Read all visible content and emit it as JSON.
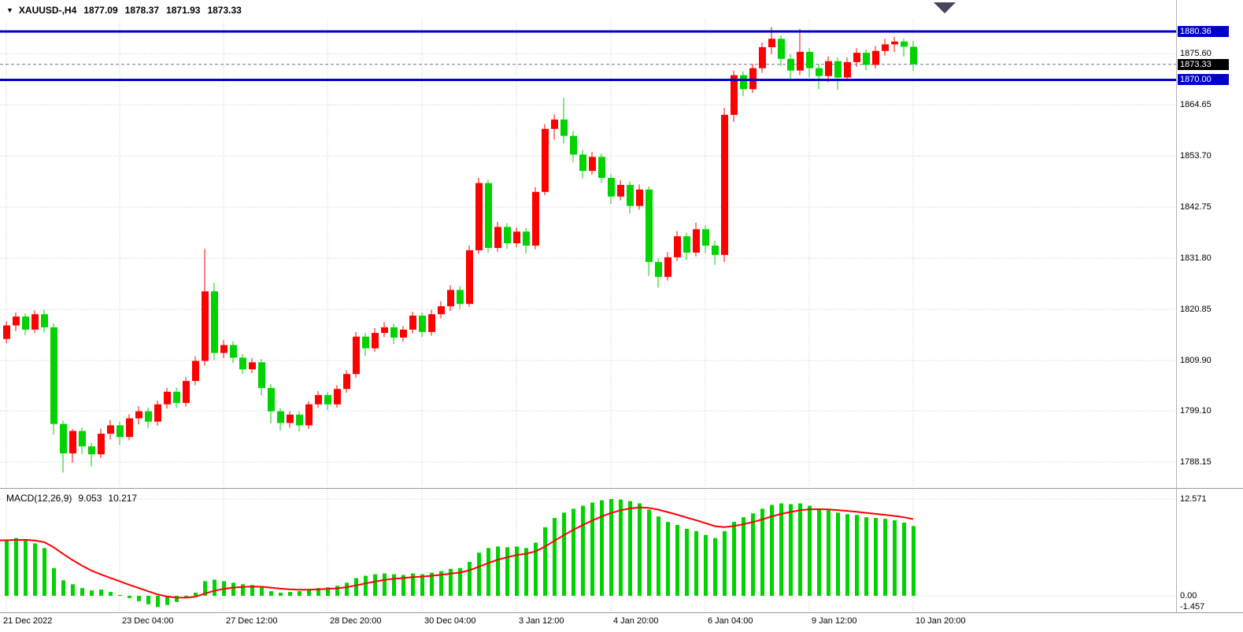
{
  "header": {
    "collapse_icon": "▼",
    "symbol_period": "XAUUSD-,H4",
    "open": "1877.09",
    "high": "1878.37",
    "low": "1871.93",
    "close": "1873.33"
  },
  "macd_panel": {
    "title": "MACD(12,26,9)",
    "main_value": "9.053",
    "signal_value": "10.217"
  },
  "colors": {
    "bull": "#ff0000",
    "bear": "#00d300",
    "macd_histogram": "#00d300",
    "macd_signal": "#ff0000",
    "level_line": "#0000cc",
    "grid": "#c9c9c9",
    "bid_line": "#777777",
    "current_tag_bg": "#000000",
    "divider": "#9a9a9a",
    "marker": "#45455a",
    "axis_text": "#000000"
  },
  "chart_data": {
    "type": "candlestick",
    "symbol": "XAUUSD-",
    "timeframe": "H4",
    "title": "XAUUSD-,H4 1877.09 1878.37 1871.93 1873.33",
    "price_view": [
      1783.5,
      1882.6
    ],
    "grid": true,
    "price_ticks": [
      {
        "label": "1875.60",
        "price": 1875.6
      },
      {
        "label": "1864.65",
        "price": 1864.65
      },
      {
        "label": "1853.70",
        "price": 1853.7
      },
      {
        "label": "1842.75",
        "price": 1842.75
      },
      {
        "label": "1831.80",
        "price": 1831.8
      },
      {
        "label": "1820.85",
        "price": 1820.85
      },
      {
        "label": "1809.90",
        "price": 1809.9
      },
      {
        "label": "1799.10",
        "price": 1799.1
      },
      {
        "label": "1788.15",
        "price": 1788.15
      }
    ],
    "levels": [
      {
        "label": "1880.36",
        "price": 1880.36
      },
      {
        "label": "1870.00",
        "price": 1870.0
      }
    ],
    "current": {
      "label": "1873.33",
      "price": 1873.33
    },
    "time_labels": [
      {
        "label": "21 Dec 2022",
        "index": 0
      },
      {
        "label": "23 Dec 04:00",
        "index": 12
      },
      {
        "label": "27 Dec 12:00",
        "index": 23
      },
      {
        "label": "28 Dec 20:00",
        "index": 34
      },
      {
        "label": "30 Dec 04:00",
        "index": 44
      },
      {
        "label": "3 Jan 12:00",
        "index": 54
      },
      {
        "label": "4 Jan 20:00",
        "index": 64
      },
      {
        "label": "6 Jan 04:00",
        "index": 74
      },
      {
        "label": "9 Jan 12:00",
        "index": 85
      },
      {
        "label": "10 Jan 20:00",
        "index": 96
      }
    ],
    "ohlc": [
      [
        1814.5,
        1818.3,
        1813.6,
        1817.4
      ],
      [
        1817.4,
        1820.2,
        1816.2,
        1819.3
      ],
      [
        1819.3,
        1820.0,
        1815.3,
        1816.5
      ],
      [
        1816.5,
        1820.6,
        1815.8,
        1819.8
      ],
      [
        1819.8,
        1820.8,
        1815.9,
        1817.0
      ],
      [
        1817.0,
        1817.8,
        1794.0,
        1796.3
      ],
      [
        1796.3,
        1797.0,
        1785.9,
        1790.0
      ],
      [
        1790.0,
        1795.2,
        1788.0,
        1794.8
      ],
      [
        1794.8,
        1795.5,
        1789.9,
        1791.5
      ],
      [
        1791.5,
        1792.3,
        1787.2,
        1789.8
      ],
      [
        1789.8,
        1795.3,
        1789.0,
        1794.2
      ],
      [
        1794.2,
        1797.1,
        1793.0,
        1796.0
      ],
      [
        1796.0,
        1796.8,
        1791.8,
        1793.5
      ],
      [
        1793.5,
        1798.4,
        1792.8,
        1797.5
      ],
      [
        1797.5,
        1800.1,
        1796.2,
        1799.0
      ],
      [
        1799.0,
        1799.8,
        1795.4,
        1796.8
      ],
      [
        1796.8,
        1801.3,
        1795.9,
        1800.5
      ],
      [
        1800.5,
        1804.0,
        1799.6,
        1803.2
      ],
      [
        1803.2,
        1804.1,
        1799.7,
        1800.8
      ],
      [
        1800.8,
        1806.3,
        1800.0,
        1805.5
      ],
      [
        1805.5,
        1810.8,
        1804.6,
        1809.8
      ],
      [
        1809.8,
        1833.8,
        1808.8,
        1824.7
      ],
      [
        1824.7,
        1826.5,
        1810.0,
        1811.5
      ],
      [
        1811.5,
        1814.3,
        1810.4,
        1813.2
      ],
      [
        1813.2,
        1814.0,
        1809.4,
        1810.5
      ],
      [
        1810.5,
        1811.3,
        1807.0,
        1808.0
      ],
      [
        1808.0,
        1810.4,
        1807.2,
        1809.5
      ],
      [
        1809.5,
        1810.2,
        1802.4,
        1804.0
      ],
      [
        1804.0,
        1804.8,
        1796.4,
        1799.0
      ],
      [
        1799.0,
        1799.7,
        1794.9,
        1796.5
      ],
      [
        1796.5,
        1799.0,
        1795.5,
        1798.3
      ],
      [
        1798.3,
        1799.0,
        1794.7,
        1796.0
      ],
      [
        1796.0,
        1801.2,
        1795.2,
        1800.5
      ],
      [
        1800.5,
        1803.3,
        1799.7,
        1802.5
      ],
      [
        1802.5,
        1803.2,
        1799.3,
        1800.5
      ],
      [
        1800.5,
        1804.6,
        1799.8,
        1803.8
      ],
      [
        1803.8,
        1807.8,
        1803.0,
        1807.0
      ],
      [
        1807.0,
        1816.0,
        1806.2,
        1815.0
      ],
      [
        1815.0,
        1815.8,
        1810.9,
        1812.5
      ],
      [
        1812.5,
        1816.8,
        1811.8,
        1815.8
      ],
      [
        1815.8,
        1818.1,
        1814.9,
        1817.0
      ],
      [
        1817.0,
        1817.8,
        1813.4,
        1814.8
      ],
      [
        1814.8,
        1817.3,
        1813.9,
        1816.5
      ],
      [
        1816.5,
        1820.3,
        1815.7,
        1819.5
      ],
      [
        1819.5,
        1820.2,
        1814.9,
        1816.0
      ],
      [
        1816.0,
        1820.8,
        1815.2,
        1819.8
      ],
      [
        1819.8,
        1822.6,
        1818.9,
        1821.5
      ],
      [
        1821.5,
        1826.0,
        1820.5,
        1825.0
      ],
      [
        1825.0,
        1825.8,
        1820.9,
        1822.0
      ],
      [
        1822.0,
        1834.5,
        1821.4,
        1833.5
      ],
      [
        1833.5,
        1849.0,
        1832.7,
        1847.9
      ],
      [
        1847.9,
        1848.6,
        1833.0,
        1834.0
      ],
      [
        1834.0,
        1839.6,
        1833.2,
        1838.5
      ],
      [
        1838.5,
        1839.3,
        1833.8,
        1835.0
      ],
      [
        1835.0,
        1838.4,
        1834.1,
        1837.5
      ],
      [
        1837.5,
        1838.3,
        1832.8,
        1834.5
      ],
      [
        1834.5,
        1847.0,
        1833.7,
        1846.0
      ],
      [
        1846.0,
        1860.5,
        1845.3,
        1859.5
      ],
      [
        1859.5,
        1862.6,
        1857.2,
        1861.5
      ],
      [
        1861.5,
        1866.1,
        1856.4,
        1858.0
      ],
      [
        1858.0,
        1859.1,
        1852.4,
        1854.0
      ],
      [
        1854.0,
        1855.0,
        1848.9,
        1850.5
      ],
      [
        1850.5,
        1854.6,
        1849.7,
        1853.5
      ],
      [
        1853.5,
        1854.2,
        1847.9,
        1849.0
      ],
      [
        1849.0,
        1849.8,
        1843.4,
        1845.0
      ],
      [
        1845.0,
        1848.5,
        1844.2,
        1847.5
      ],
      [
        1847.5,
        1848.2,
        1841.4,
        1843.0
      ],
      [
        1843.0,
        1847.6,
        1842.2,
        1846.5
      ],
      [
        1846.5,
        1847.2,
        1828.0,
        1831.0
      ],
      [
        1831.0,
        1831.8,
        1825.5,
        1827.8
      ],
      [
        1827.8,
        1833.1,
        1827.0,
        1832.0
      ],
      [
        1832.0,
        1837.6,
        1831.2,
        1836.5
      ],
      [
        1836.5,
        1837.2,
        1831.4,
        1833.0
      ],
      [
        1833.0,
        1839.4,
        1832.2,
        1838.0
      ],
      [
        1838.0,
        1838.8,
        1832.9,
        1834.5
      ],
      [
        1834.5,
        1835.5,
        1830.4,
        1832.5
      ],
      [
        1832.5,
        1864.0,
        1831.0,
        1862.5
      ],
      [
        1862.5,
        1872.0,
        1861.0,
        1871.0
      ],
      [
        1871.0,
        1871.8,
        1866.5,
        1868.0
      ],
      [
        1868.0,
        1873.4,
        1867.2,
        1872.5
      ],
      [
        1872.5,
        1878.0,
        1871.5,
        1877.0
      ],
      [
        1877.0,
        1881.3,
        1875.5,
        1878.8
      ],
      [
        1878.8,
        1879.5,
        1873.0,
        1874.5
      ],
      [
        1874.5,
        1875.5,
        1870.2,
        1872.0
      ],
      [
        1872.0,
        1880.9,
        1871.0,
        1876.0
      ],
      [
        1876.0,
        1876.8,
        1870.5,
        1872.5
      ],
      [
        1872.5,
        1873.5,
        1868.0,
        1870.8
      ],
      [
        1870.8,
        1875.0,
        1869.5,
        1874.0
      ],
      [
        1874.0,
        1874.8,
        1867.8,
        1870.5
      ],
      [
        1870.5,
        1874.8,
        1869.7,
        1873.8
      ],
      [
        1873.8,
        1876.8,
        1872.8,
        1875.8
      ],
      [
        1875.8,
        1876.5,
        1872.0,
        1873.2
      ],
      [
        1873.2,
        1877.2,
        1872.4,
        1876.2
      ],
      [
        1876.2,
        1878.8,
        1875.2,
        1877.6
      ],
      [
        1877.6,
        1879.2,
        1876.0,
        1878.2
      ],
      [
        1878.2,
        1878.8,
        1875.0,
        1877.1
      ],
      [
        1877.09,
        1878.37,
        1871.93,
        1873.33
      ]
    ],
    "macd_hist": [
      7.2,
      7.5,
      7.3,
      6.8,
      6.2,
      3.6,
      2.0,
      1.5,
      1.0,
      0.7,
      0.8,
      0.5,
      0.1,
      -0.3,
      -0.7,
      -1.1,
      -1.46,
      -1.2,
      -0.8,
      -0.3,
      0.4,
      1.9,
      2.1,
      1.9,
      1.7,
      1.5,
      1.4,
      1.1,
      0.6,
      0.4,
      0.5,
      0.6,
      0.8,
      1.0,
      1.1,
      1.3,
      1.7,
      2.3,
      2.6,
      2.8,
      2.9,
      2.8,
      2.7,
      2.9,
      2.8,
      3.0,
      3.2,
      3.5,
      3.6,
      4.4,
      5.6,
      6.2,
      6.4,
      6.3,
      6.4,
      6.2,
      6.9,
      8.9,
      10.1,
      10.8,
      11.3,
      11.7,
      12.1,
      12.4,
      12.57,
      12.5,
      12.3,
      12.0,
      11.2,
      10.3,
      9.6,
      9.2,
      8.7,
      8.4,
      7.9,
      7.5,
      8.4,
      9.6,
      10.2,
      10.7,
      11.3,
      11.8,
      12.0,
      11.9,
      12.0,
      11.7,
      11.3,
      11.1,
      10.8,
      10.6,
      10.5,
      10.2,
      10.1,
      10.0,
      9.8,
      9.5,
      9.053
    ],
    "macd_signal_period": 9,
    "macd_scale": [
      {
        "label": "12.571",
        "value": 12.571
      },
      {
        "label": "0.00",
        "value": 0
      },
      {
        "label": "-1.457",
        "value": -1.457
      }
    ]
  }
}
